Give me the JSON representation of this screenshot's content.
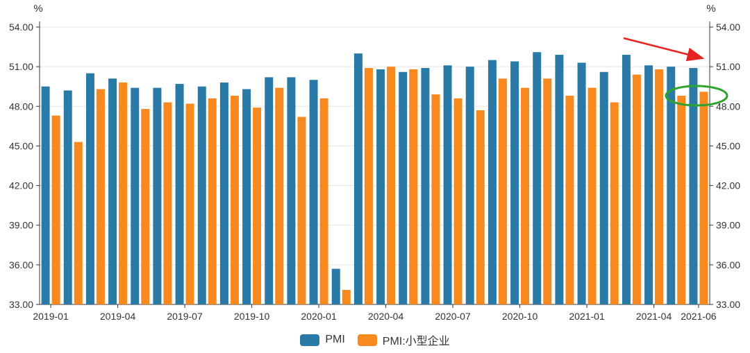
{
  "chart_data": {
    "type": "bar",
    "y_unit_left": "%",
    "y_unit_right": "%",
    "ylim": [
      33,
      54
    ],
    "y_ticks": [
      "33.00",
      "36.00",
      "39.00",
      "42.00",
      "45.00",
      "48.00",
      "51.00",
      "54.00"
    ],
    "x_tick_labels": [
      "2019-01",
      "2019-04",
      "2019-07",
      "2019-10",
      "2020-01",
      "2020-04",
      "2020-07",
      "2020-10",
      "2021-01",
      "2021-04",
      "2021-06"
    ],
    "categories": [
      "2019-01",
      "2019-02",
      "2019-03",
      "2019-04",
      "2019-05",
      "2019-06",
      "2019-07",
      "2019-08",
      "2019-09",
      "2019-10",
      "2019-11",
      "2019-12",
      "2020-01",
      "2020-02",
      "2020-03",
      "2020-04",
      "2020-05",
      "2020-06",
      "2020-07",
      "2020-08",
      "2020-09",
      "2020-10",
      "2020-11",
      "2020-12",
      "2021-01",
      "2021-02",
      "2021-03",
      "2021-04",
      "2021-05",
      "2021-06"
    ],
    "series": [
      {
        "name": "PMI",
        "color": "#2a7aa8",
        "values": [
          49.5,
          49.2,
          50.5,
          50.1,
          49.4,
          49.4,
          49.7,
          49.5,
          49.8,
          49.3,
          50.2,
          50.2,
          50.0,
          35.7,
          52.0,
          50.8,
          50.6,
          50.9,
          51.1,
          51.0,
          51.5,
          51.4,
          52.1,
          51.9,
          51.3,
          50.6,
          51.9,
          51.1,
          51.0,
          50.9
        ]
      },
      {
        "name": "PMI:小型企业",
        "color": "#f7891f",
        "values": [
          47.3,
          45.3,
          49.3,
          49.8,
          47.8,
          48.3,
          48.2,
          48.6,
          48.8,
          47.9,
          49.4,
          47.2,
          48.6,
          34.1,
          50.9,
          51.0,
          50.8,
          48.9,
          48.6,
          47.7,
          50.1,
          49.4,
          50.1,
          48.8,
          49.4,
          48.3,
          50.4,
          50.8,
          48.8,
          49.1
        ]
      }
    ],
    "annotations": [
      {
        "type": "arrow",
        "color": "#e8231f"
      },
      {
        "type": "ellipse",
        "color": "#2ea32e"
      }
    ]
  }
}
